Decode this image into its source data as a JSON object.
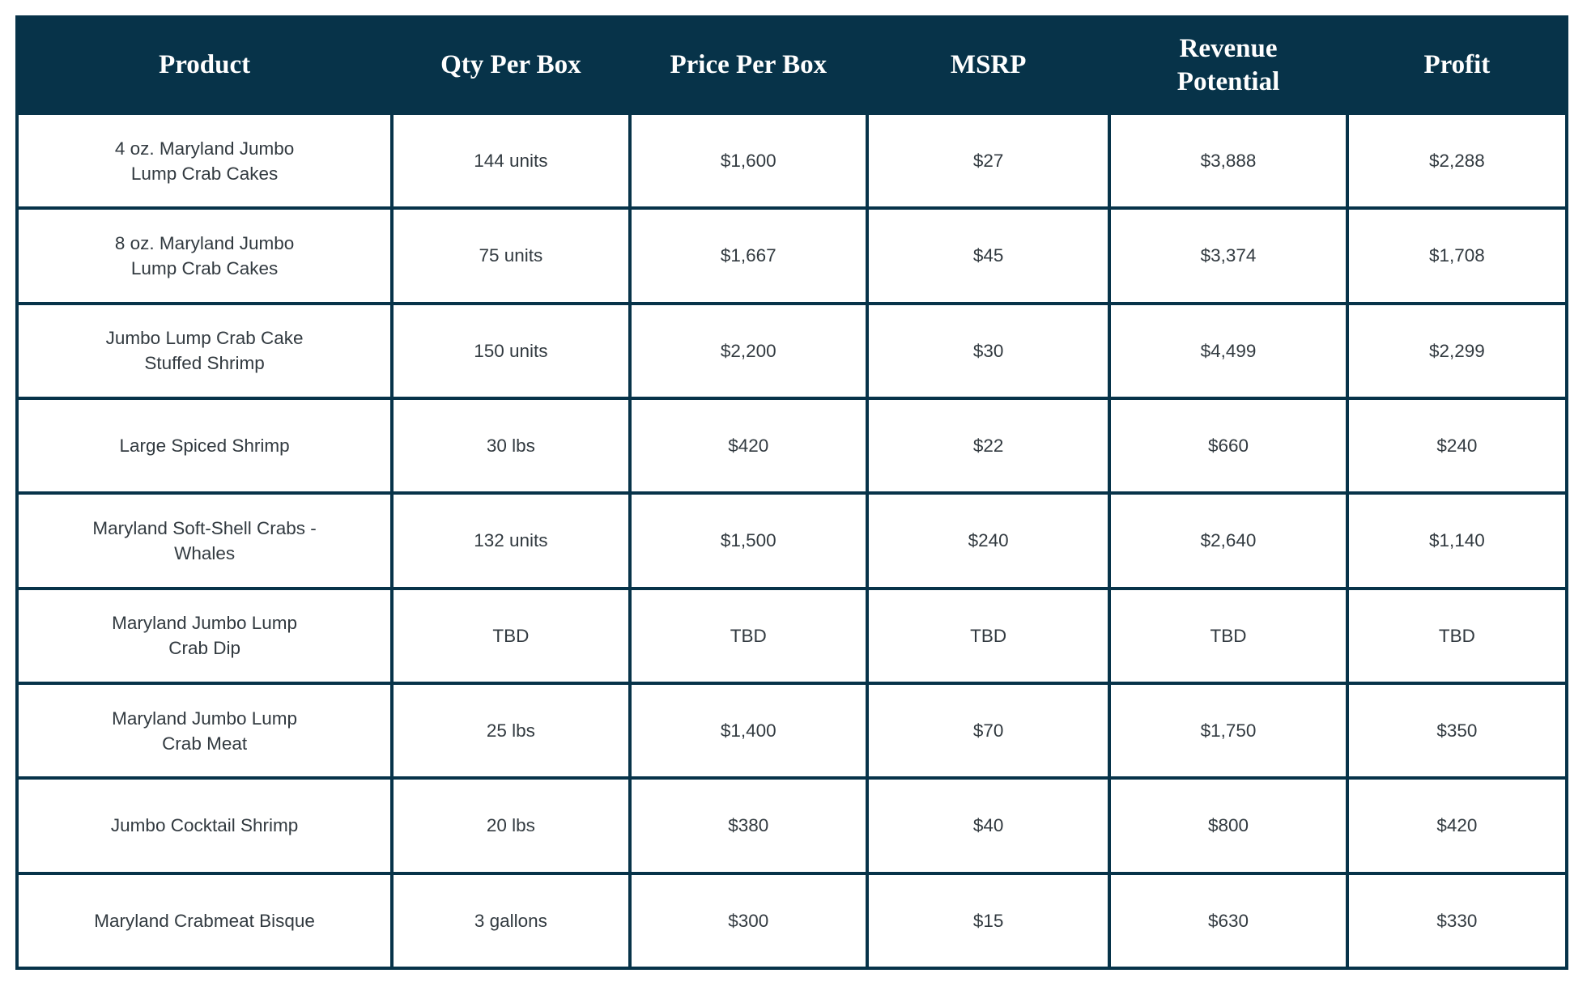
{
  "chart_data": {
    "type": "table",
    "title": "",
    "columns": [
      "Product",
      "Qty Per Box",
      "Price Per Box",
      "MSRP",
      "Revenue Potential",
      "Profit"
    ],
    "rows": [
      [
        "4 oz. Maryland Jumbo Lump Crab Cakes",
        "144 units",
        "$1,600",
        "$27",
        "$3,888",
        "$2,288"
      ],
      [
        "8 oz. Maryland Jumbo Lump Crab Cakes",
        "75 units",
        "$1,667",
        "$45",
        "$3,374",
        "$1,708"
      ],
      [
        "Jumbo Lump Crab Cake Stuffed Shrimp",
        "150 units",
        "$2,200",
        "$30",
        "$4,499",
        "$2,299"
      ],
      [
        "Large Spiced Shrimp",
        "30 lbs",
        "$420",
        "$22",
        "$660",
        "$240"
      ],
      [
        "Maryland Soft-Shell Crabs - Whales",
        "132 units",
        "$1,500",
        "$240",
        "$2,640",
        "$1,140"
      ],
      [
        "Maryland Jumbo Lump Crab Dip",
        "TBD",
        "TBD",
        "TBD",
        "TBD",
        "TBD"
      ],
      [
        "Maryland Jumbo Lump Crab Meat",
        "25 lbs",
        "$1,400",
        "$70",
        "$1,750",
        "$350"
      ],
      [
        "Jumbo Cocktail Shrimp",
        "20 lbs",
        "$380",
        "$40",
        "$800",
        "$420"
      ],
      [
        "Maryland Crabmeat Bisque",
        "3 gallons",
        "$300",
        "$15",
        "$630",
        "$330"
      ]
    ]
  },
  "colors": {
    "header_bg": "#073349",
    "border": "#073349",
    "header_text": "#ffffff",
    "body_text": "#323a40",
    "row_bg": "#ffffff",
    "page_bg": "#ffffff"
  }
}
